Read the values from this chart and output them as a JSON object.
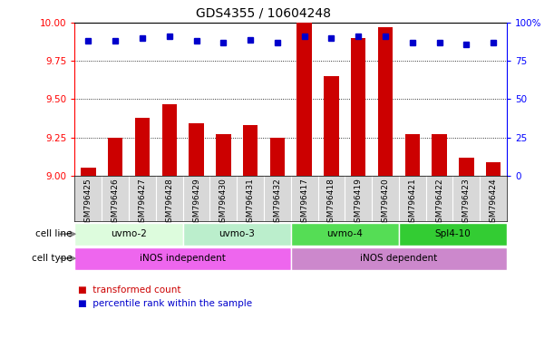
{
  "title": "GDS4355 / 10604248",
  "samples": [
    "GSM796425",
    "GSM796426",
    "GSM796427",
    "GSM796428",
    "GSM796429",
    "GSM796430",
    "GSM796431",
    "GSM796432",
    "GSM796417",
    "GSM796418",
    "GSM796419",
    "GSM796420",
    "GSM796421",
    "GSM796422",
    "GSM796423",
    "GSM796424"
  ],
  "bar_values": [
    9.05,
    9.25,
    9.38,
    9.47,
    9.34,
    9.27,
    9.33,
    9.25,
    10.0,
    9.65,
    9.9,
    9.97,
    9.27,
    9.27,
    9.12,
    9.09
  ],
  "dot_values": [
    88,
    88,
    90,
    91,
    88,
    87,
    89,
    87,
    91,
    90,
    91,
    91,
    87,
    87,
    86,
    87
  ],
  "ylim_left": [
    9,
    10
  ],
  "ylim_right": [
    0,
    100
  ],
  "yticks_left": [
    9,
    9.25,
    9.5,
    9.75,
    10
  ],
  "yticks_right": [
    0,
    25,
    50,
    75,
    100
  ],
  "bar_color": "#cc0000",
  "dot_color": "#0000cc",
  "cell_lines": [
    {
      "label": "uvmo-2",
      "start": 0,
      "end": 4,
      "color": "#ddfcdd"
    },
    {
      "label": "uvmo-3",
      "start": 4,
      "end": 8,
      "color": "#bbeecc"
    },
    {
      "label": "uvmo-4",
      "start": 8,
      "end": 12,
      "color": "#55dd55"
    },
    {
      "label": "Spl4-10",
      "start": 12,
      "end": 16,
      "color": "#33cc33"
    }
  ],
  "cell_types": [
    {
      "label": "iNOS independent",
      "start": 0,
      "end": 8,
      "color": "#ee66ee"
    },
    {
      "label": "iNOS dependent",
      "start": 8,
      "end": 16,
      "color": "#cc88cc"
    }
  ],
  "legend_items": [
    {
      "label": "transformed count",
      "color": "#cc0000"
    },
    {
      "label": "percentile rank within the sample",
      "color": "#0000cc"
    }
  ],
  "xtick_bg": "#d8d8d8",
  "background_color": "#ffffff",
  "title_fontsize": 10,
  "tick_fontsize": 7.5,
  "sample_fontsize": 6.5
}
